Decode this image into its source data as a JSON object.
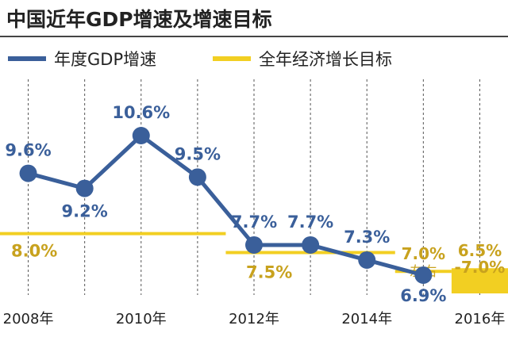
{
  "chart_data": {
    "type": "line",
    "title": "中国近年GDP增速及增速目标",
    "x_ticks": [
      "2008年",
      "2010年",
      "2012年",
      "2014年",
      "2016年"
    ],
    "x_range": [
      2007.5,
      2016.5
    ],
    "y_range": [
      6,
      11.5
    ],
    "legend_placement": "top",
    "grid": "vertical dashed",
    "series": [
      {
        "name": "年度GDP增速",
        "color": "#3a5f9a",
        "points": [
          {
            "x": 2008,
            "y": 9.6,
            "label": "9.6%"
          },
          {
            "x": 2009,
            "y": 9.2,
            "label": "9.2%"
          },
          {
            "x": 2010,
            "y": 10.6,
            "label": "10.6%"
          },
          {
            "x": 2011,
            "y": 9.5,
            "label": "9.5%"
          },
          {
            "x": 2012,
            "y": 7.7,
            "label": "7.7%"
          },
          {
            "x": 2013,
            "y": 7.7,
            "label": "7.7%"
          },
          {
            "x": 2014,
            "y": 7.3,
            "label": "7.3%"
          },
          {
            "x": 2015,
            "y": 6.9,
            "label": "6.9%"
          }
        ]
      },
      {
        "name": "全年经济增长目标",
        "color": "#f2cf22",
        "label_color": "#c8a21e",
        "segments": [
          {
            "x_start": 2007.5,
            "x_end": 2011.5,
            "y": 8.0,
            "label": "8.0%"
          },
          {
            "x_start": 2011.5,
            "x_end": 2014.5,
            "y": 7.5,
            "label": "7.5%"
          },
          {
            "x_start": 2014.5,
            "x_end": 2015.5,
            "y": 7.0,
            "label": "7.0%",
            "label2": "左右"
          }
        ],
        "band": {
          "x_start": 2015.5,
          "x_end": 2016.5,
          "y_low": 6.5,
          "y_high": 7.0,
          "label": "6.5%",
          "label2": "-7.0%"
        }
      }
    ]
  }
}
